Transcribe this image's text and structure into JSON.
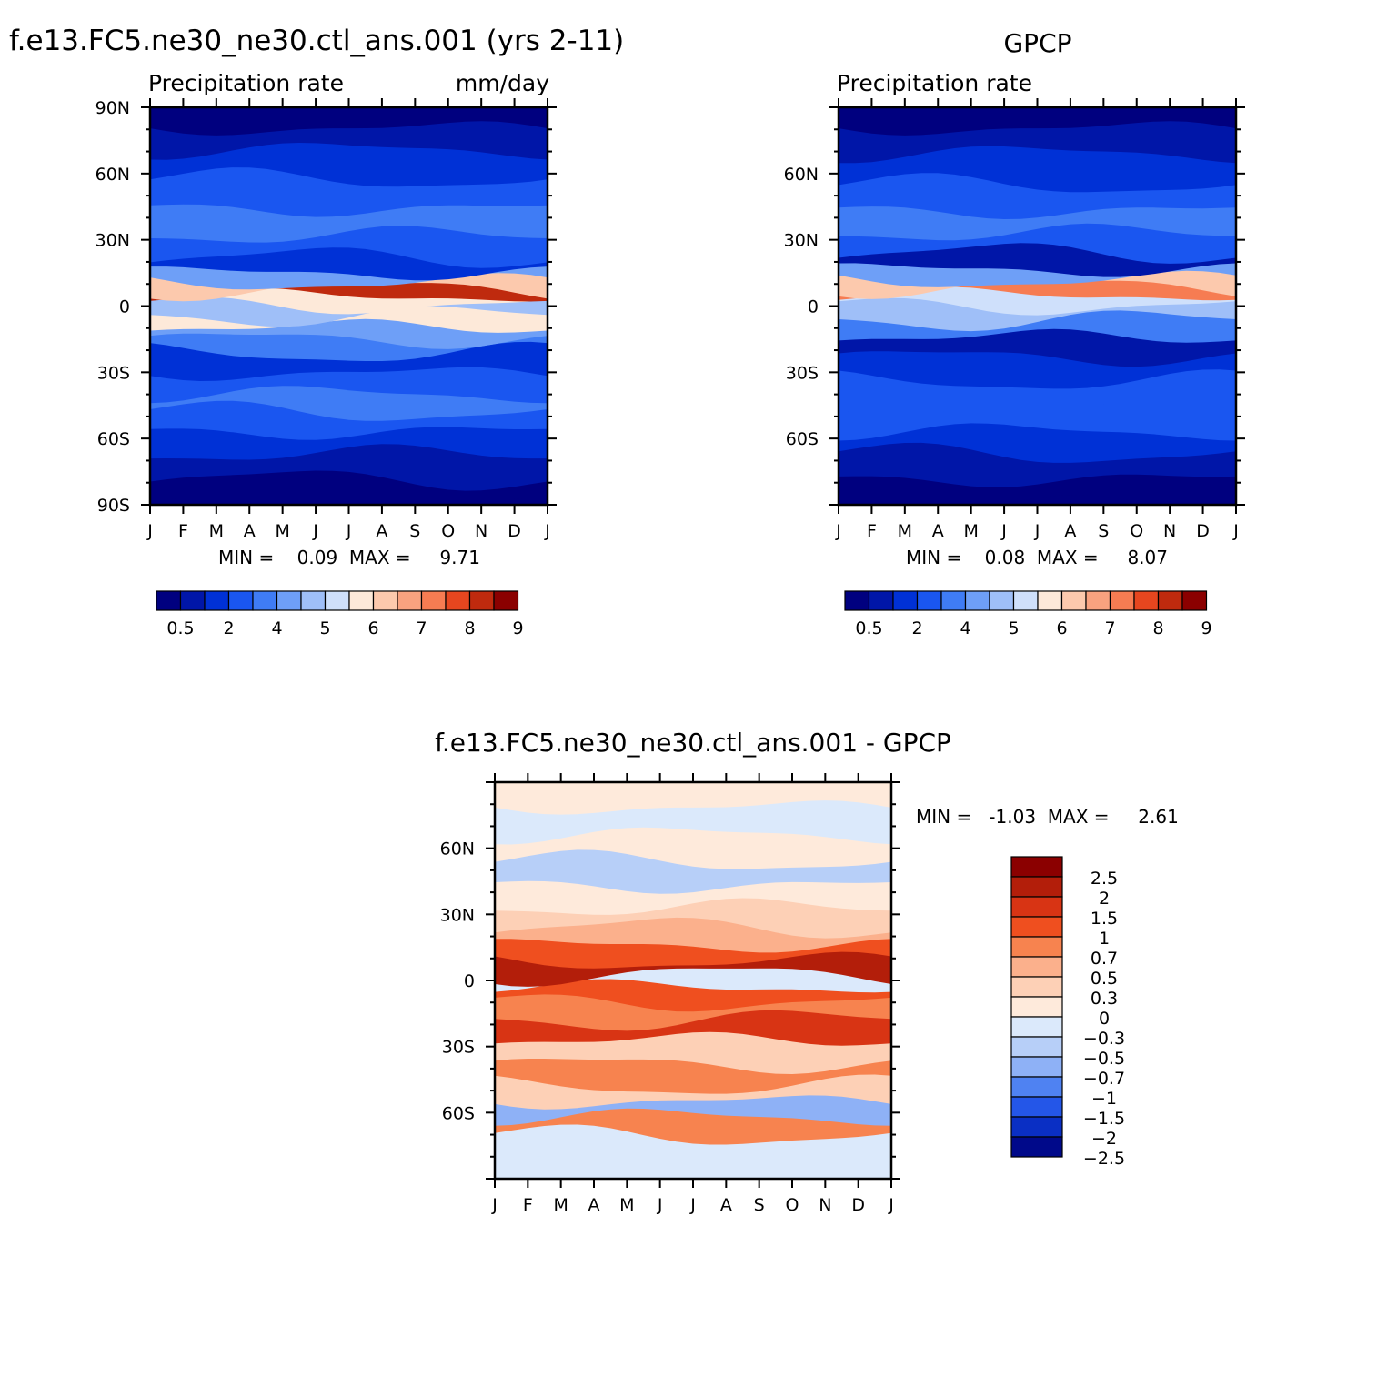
{
  "chart_data": [
    {
      "id": "model",
      "type": "heatmap",
      "title": "f.e13.FC5.ne30_ne30.ctl_ans.001 (yrs 2-11)",
      "subtitle_left": "Precipitation rate",
      "subtitle_right": "mm/day",
      "xlabel": "",
      "ylabel": "",
      "x_ticks": [
        "J",
        "F",
        "M",
        "A",
        "M",
        "J",
        "J",
        "A",
        "S",
        "O",
        "N",
        "D",
        "J"
      ],
      "y_ticks": [
        {
          "lat": 90,
          "label": "90N"
        },
        {
          "lat": 60,
          "label": "60N"
        },
        {
          "lat": 30,
          "label": "30N"
        },
        {
          "lat": 0,
          "label": "0"
        },
        {
          "lat": -30,
          "label": "30S"
        },
        {
          "lat": -60,
          "label": "60S"
        },
        {
          "lat": -90,
          "label": "90S"
        }
      ],
      "ylim": [
        -90,
        90
      ],
      "stats_text": "MIN =    0.09  MAX =     9.71",
      "min": 0.09,
      "max": 9.71,
      "colorbar": {
        "orientation": "horizontal",
        "labels": [
          "0.5",
          "2",
          "4",
          "5",
          "6",
          "7",
          "8",
          "9"
        ],
        "colors": [
          "#00007f",
          "#0016a8",
          "#0031d6",
          "#1a56f0",
          "#3f7cf5",
          "#6e9ff7",
          "#9fbff8",
          "#cfe0fb",
          "#fde9d9",
          "#fcc9ad",
          "#f9a27f",
          "#f67c52",
          "#e6461f",
          "#bf2a0e",
          "#8b0000"
        ]
      },
      "bands": [
        {
          "lat": 85,
          "color_index": 0
        },
        {
          "lat": 76,
          "color_index": 1
        },
        {
          "lat": 65,
          "color_index": 2
        },
        {
          "lat": 50,
          "color_index": 3
        },
        {
          "lat": 38,
          "color_index": 4
        },
        {
          "lat": 26,
          "color_index": 3
        },
        {
          "lat": 18,
          "color_index": 2
        },
        {
          "lat": 12,
          "color_index": 5
        },
        {
          "lat": 9,
          "color_index": 9
        },
        {
          "lat": 6,
          "color_index": 13
        },
        {
          "lat": 3,
          "color_index": 8
        },
        {
          "lat": -2,
          "color_index": 6
        },
        {
          "lat": -7,
          "color_index": 8
        },
        {
          "lat": -12,
          "color_index": 5
        },
        {
          "lat": -18,
          "color_index": 4
        },
        {
          "lat": -25,
          "color_index": 2
        },
        {
          "lat": -36,
          "color_index": 3
        },
        {
          "lat": -44,
          "color_index": 4
        },
        {
          "lat": -52,
          "color_index": 3
        },
        {
          "lat": -62,
          "color_index": 2
        },
        {
          "lat": -72,
          "color_index": 1
        },
        {
          "lat": -85,
          "color_index": 0
        }
      ]
    },
    {
      "id": "obs",
      "type": "heatmap",
      "title": "GPCP",
      "subtitle_left": "Precipitation rate",
      "subtitle_right": "",
      "x_ticks": [
        "J",
        "F",
        "M",
        "A",
        "M",
        "J",
        "J",
        "A",
        "S",
        "O",
        "N",
        "D",
        "J"
      ],
      "y_ticks": [
        {
          "lat": 60,
          "label": "60N"
        },
        {
          "lat": 30,
          "label": "30N"
        },
        {
          "lat": 0,
          "label": "0"
        },
        {
          "lat": -30,
          "label": "30S"
        },
        {
          "lat": -60,
          "label": "60S"
        }
      ],
      "ylim": [
        -90,
        90
      ],
      "stats_text": "MIN =    0.08  MAX =     8.07",
      "min": 0.08,
      "max": 8.07,
      "colorbar": {
        "orientation": "horizontal",
        "labels": [
          "0.5",
          "2",
          "4",
          "5",
          "6",
          "7",
          "8",
          "9"
        ],
        "colors": [
          "#00007f",
          "#0016a8",
          "#0031d6",
          "#1a56f0",
          "#3f7cf5",
          "#6e9ff7",
          "#9fbff8",
          "#cfe0fb",
          "#fde9d9",
          "#fcc9ad",
          "#f9a27f",
          "#f67c52",
          "#e6461f",
          "#bf2a0e",
          "#8b0000"
        ]
      },
      "bands": [
        {
          "lat": 85,
          "color_index": 0
        },
        {
          "lat": 76,
          "color_index": 1
        },
        {
          "lat": 62,
          "color_index": 2
        },
        {
          "lat": 48,
          "color_index": 3
        },
        {
          "lat": 38,
          "color_index": 4
        },
        {
          "lat": 28,
          "color_index": 3
        },
        {
          "lat": 20,
          "color_index": 1
        },
        {
          "lat": 13,
          "color_index": 5
        },
        {
          "lat": 10,
          "color_index": 9
        },
        {
          "lat": 7,
          "color_index": 11
        },
        {
          "lat": 3,
          "color_index": 7
        },
        {
          "lat": -3,
          "color_index": 6
        },
        {
          "lat": -10,
          "color_index": 4
        },
        {
          "lat": -18,
          "color_index": 1
        },
        {
          "lat": -28,
          "color_index": 2
        },
        {
          "lat": -40,
          "color_index": 3
        },
        {
          "lat": -52,
          "color_index": 3
        },
        {
          "lat": -62,
          "color_index": 2
        },
        {
          "lat": -72,
          "color_index": 1
        },
        {
          "lat": -85,
          "color_index": 0
        }
      ]
    },
    {
      "id": "diff",
      "type": "heatmap",
      "title": "f.e13.FC5.ne30_ne30.ctl_ans.001 - GPCP",
      "x_ticks": [
        "J",
        "F",
        "M",
        "A",
        "M",
        "J",
        "J",
        "A",
        "S",
        "O",
        "N",
        "D",
        "J"
      ],
      "y_ticks": [
        {
          "lat": 60,
          "label": "60N"
        },
        {
          "lat": 30,
          "label": "30N"
        },
        {
          "lat": 0,
          "label": "0"
        },
        {
          "lat": -30,
          "label": "30S"
        },
        {
          "lat": -60,
          "label": "60S"
        }
      ],
      "ylim": [
        -90,
        90
      ],
      "stats_text": "MIN =   -1.03  MAX =     2.61",
      "min": -1.03,
      "max": 2.61,
      "colorbar": {
        "orientation": "vertical",
        "labels": [
          "2.5",
          "2",
          "1.5",
          "1",
          "0.7",
          "0.5",
          "0.3",
          "0",
          "-0.3",
          "-0.5",
          "-0.7",
          "-1",
          "-1.5",
          "-2",
          "-2.5"
        ],
        "colors_top_to_bottom": [
          "#8b0000",
          "#b31e0a",
          "#d83414",
          "#ef4f1f",
          "#f7834f",
          "#fbb08c",
          "#fdd0b6",
          "#feeadb",
          "#dbe9fb",
          "#b7cff8",
          "#8eb1f6",
          "#4f82f2",
          "#2456e8",
          "#0a2fc4",
          "#00098a"
        ]
      },
      "bands": [
        {
          "lat": 85,
          "color_index": 7
        },
        {
          "lat": 72,
          "color_index": 8
        },
        {
          "lat": 60,
          "color_index": 7
        },
        {
          "lat": 48,
          "color_index": 9
        },
        {
          "lat": 38,
          "color_index": 7
        },
        {
          "lat": 28,
          "color_index": 6
        },
        {
          "lat": 20,
          "color_index": 5
        },
        {
          "lat": 12,
          "color_index": 3
        },
        {
          "lat": 5,
          "color_index": 1
        },
        {
          "lat": 0,
          "color_index": 8
        },
        {
          "lat": -6,
          "color_index": 3
        },
        {
          "lat": -14,
          "color_index": 4
        },
        {
          "lat": -22,
          "color_index": 2
        },
        {
          "lat": -32,
          "color_index": 6
        },
        {
          "lat": -44,
          "color_index": 4
        },
        {
          "lat": -52,
          "color_index": 6
        },
        {
          "lat": -58,
          "color_index": 10
        },
        {
          "lat": -66,
          "color_index": 4
        },
        {
          "lat": -75,
          "color_index": 8
        },
        {
          "lat": -87,
          "color_index": 8
        }
      ]
    }
  ]
}
